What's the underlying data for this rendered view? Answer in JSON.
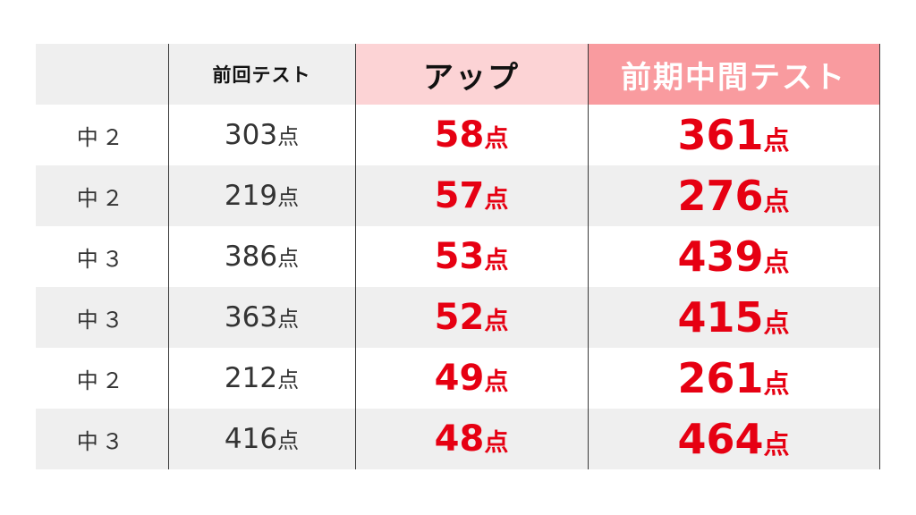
{
  "header": {
    "grade": "",
    "previous_test": "前回テスト",
    "up": "アップ",
    "midterm": "前期中間テスト"
  },
  "unit": "点",
  "rows": [
    {
      "grade": "中２",
      "previous": "303",
      "up": "58",
      "midterm": "361"
    },
    {
      "grade": "中２",
      "previous": "219",
      "up": "57",
      "midterm": "276"
    },
    {
      "grade": "中３",
      "previous": "386",
      "up": "53",
      "midterm": "439"
    },
    {
      "grade": "中３",
      "previous": "363",
      "up": "52",
      "midterm": "415"
    },
    {
      "grade": "中２",
      "previous": "212",
      "up": "49",
      "midterm": "261"
    },
    {
      "grade": "中３",
      "previous": "416",
      "up": "48",
      "midterm": "464"
    }
  ],
  "colors": {
    "header_gray": "#efefef",
    "header_up": "#fcd3d5",
    "header_midterm": "#f99b9f",
    "accent_red": "#e60012",
    "row_alt": "#efefef"
  }
}
